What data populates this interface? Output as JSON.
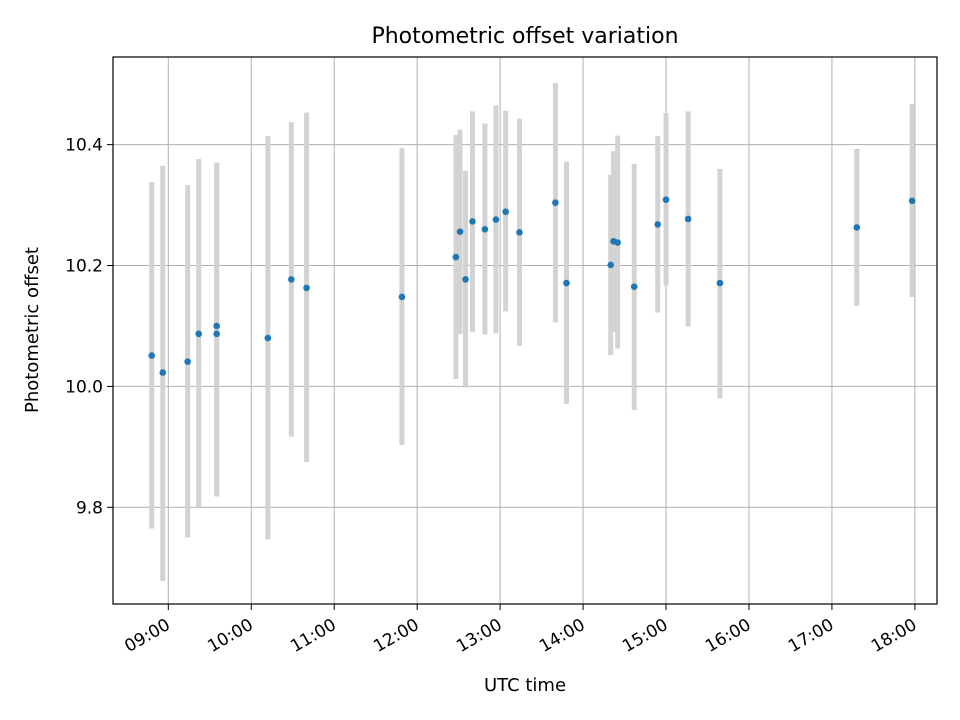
{
  "chart_data": {
    "type": "scatter",
    "title": "Photometric offset variation",
    "xlabel": "UTC time",
    "ylabel": "Photometric offset",
    "xlim": [
      "08:20",
      "18:16"
    ],
    "ylim": [
      9.64,
      10.545
    ],
    "x_ticks": [
      "09:00",
      "10:00",
      "11:00",
      "12:00",
      "13:00",
      "14:00",
      "15:00",
      "16:00",
      "17:00",
      "18:00"
    ],
    "y_ticks": [
      9.8,
      10.0,
      10.2,
      10.4
    ],
    "grid": true,
    "point_color": "#1f77b4",
    "errorbar_color": "#d3d3d3",
    "points": [
      {
        "x": "08:48",
        "y": 10.051,
        "err_low": 9.765,
        "err_high": 10.338
      },
      {
        "x": "08:56",
        "y": 10.023,
        "err_low": 9.678,
        "err_high": 10.365
      },
      {
        "x": "09:14",
        "y": 10.041,
        "err_low": 9.75,
        "err_high": 10.333
      },
      {
        "x": "09:22",
        "y": 10.087,
        "err_low": 9.8,
        "err_high": 10.376
      },
      {
        "x": "09:35",
        "y": 10.1,
        "err_low": 9.818,
        "err_high": 10.37
      },
      {
        "x": "09:35",
        "y": 10.087,
        "err_low": 9.818,
        "err_high": 10.37
      },
      {
        "x": "10:12",
        "y": 10.08,
        "err_low": 9.747,
        "err_high": 10.414
      },
      {
        "x": "10:29",
        "y": 10.177,
        "err_low": 9.917,
        "err_high": 10.437
      },
      {
        "x": "10:40",
        "y": 10.163,
        "err_low": 9.875,
        "err_high": 10.453
      },
      {
        "x": "11:49",
        "y": 10.148,
        "err_low": 9.903,
        "err_high": 10.394
      },
      {
        "x": "12:28",
        "y": 10.214,
        "err_low": 10.012,
        "err_high": 10.416
      },
      {
        "x": "12:31",
        "y": 10.256,
        "err_low": 10.087,
        "err_high": 10.425
      },
      {
        "x": "12:35",
        "y": 10.177,
        "err_low": 9.998,
        "err_high": 10.357
      },
      {
        "x": "12:40",
        "y": 10.273,
        "err_low": 10.09,
        "err_high": 10.455
      },
      {
        "x": "12:49",
        "y": 10.26,
        "err_low": 10.086,
        "err_high": 10.435
      },
      {
        "x": "12:57",
        "y": 10.276,
        "err_low": 10.088,
        "err_high": 10.465
      },
      {
        "x": "13:04",
        "y": 10.289,
        "err_low": 10.124,
        "err_high": 10.456
      },
      {
        "x": "13:14",
        "y": 10.255,
        "err_low": 10.067,
        "err_high": 10.443
      },
      {
        "x": "13:40",
        "y": 10.304,
        "err_low": 10.106,
        "err_high": 10.502
      },
      {
        "x": "13:48",
        "y": 10.171,
        "err_low": 9.971,
        "err_high": 10.372
      },
      {
        "x": "14:20",
        "y": 10.201,
        "err_low": 10.052,
        "err_high": 10.35
      },
      {
        "x": "14:22",
        "y": 10.24,
        "err_low": 10.09,
        "err_high": 10.389
      },
      {
        "x": "14:25",
        "y": 10.238,
        "err_low": 10.063,
        "err_high": 10.415
      },
      {
        "x": "14:37",
        "y": 10.165,
        "err_low": 9.961,
        "err_high": 10.368
      },
      {
        "x": "14:54",
        "y": 10.268,
        "err_low": 10.122,
        "err_high": 10.414
      },
      {
        "x": "15:00",
        "y": 10.309,
        "err_low": 10.167,
        "err_high": 10.452
      },
      {
        "x": "15:16",
        "y": 10.277,
        "err_low": 10.099,
        "err_high": 10.455
      },
      {
        "x": "15:39",
        "y": 10.171,
        "err_low": 9.98,
        "err_high": 10.36
      },
      {
        "x": "17:18",
        "y": 10.263,
        "err_low": 10.133,
        "err_high": 10.393
      },
      {
        "x": "17:58",
        "y": 10.307,
        "err_low": 10.148,
        "err_high": 10.467
      }
    ]
  }
}
